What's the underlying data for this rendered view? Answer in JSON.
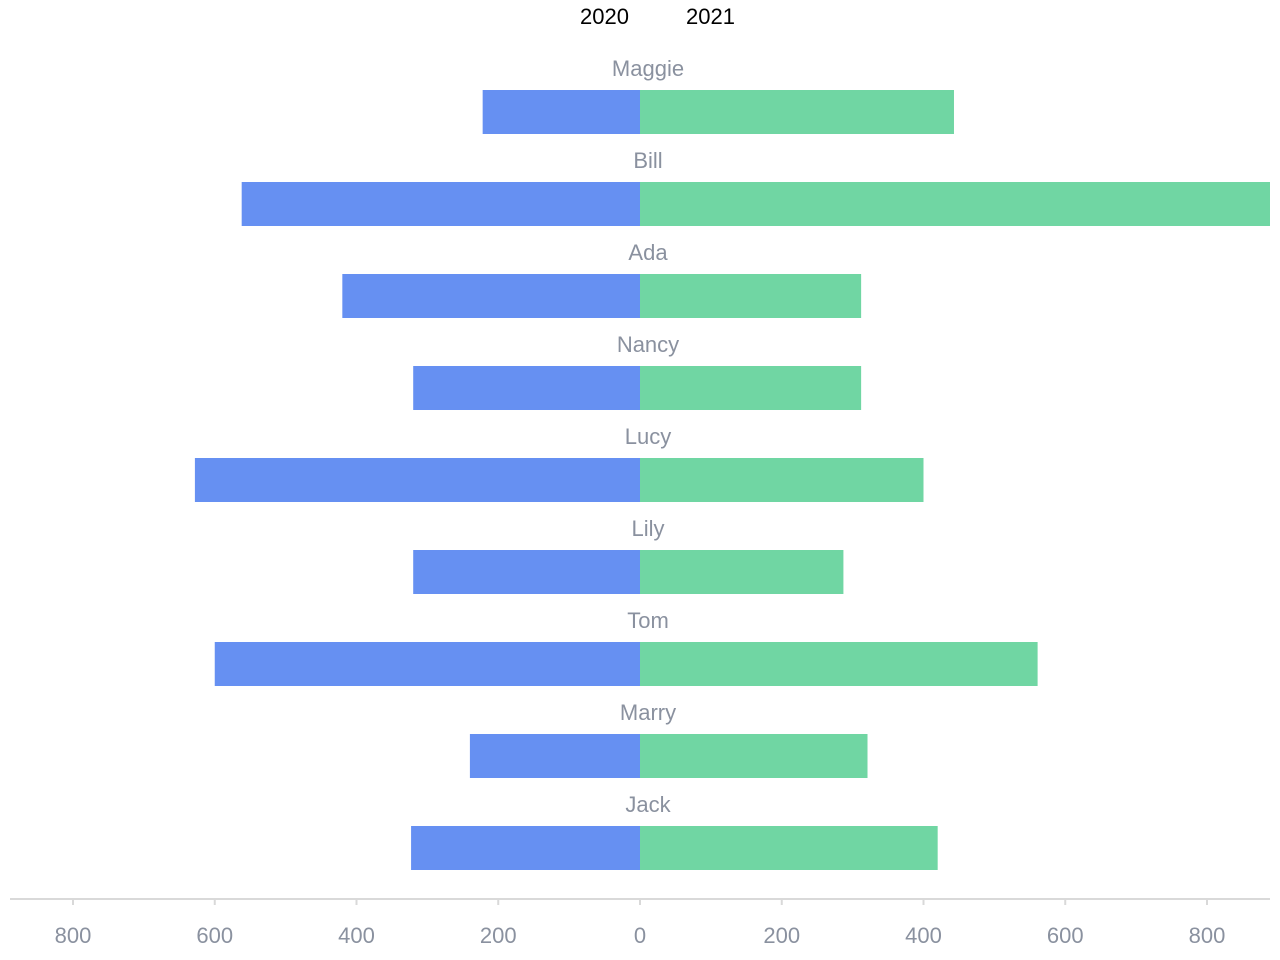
{
  "chart_data": {
    "type": "bar",
    "orientation": "horizontal-diverging",
    "categories": [
      "Maggie",
      "Bill",
      "Ada",
      "Nancy",
      "Lucy",
      "Lily",
      "Tom",
      "Marry",
      "Jack"
    ],
    "series": [
      {
        "name": "2020",
        "color": "#6690f2",
        "side": "left",
        "values": [
          222,
          562,
          420,
          320,
          628,
          320,
          600,
          240,
          323
        ]
      },
      {
        "name": "2021",
        "color": "#70d6a3",
        "side": "right",
        "values": [
          443,
          890,
          312,
          312,
          400,
          287,
          561,
          321,
          420
        ]
      }
    ],
    "x_ticks": [
      "800",
      "600",
      "400",
      "200",
      "0",
      "200",
      "400",
      "600",
      "800"
    ],
    "xlim": [
      -800,
      800
    ],
    "legend": {
      "position": "top-center",
      "items": [
        "2020",
        "2021"
      ]
    },
    "grid": false,
    "axis_color": "#d9d9d9"
  }
}
